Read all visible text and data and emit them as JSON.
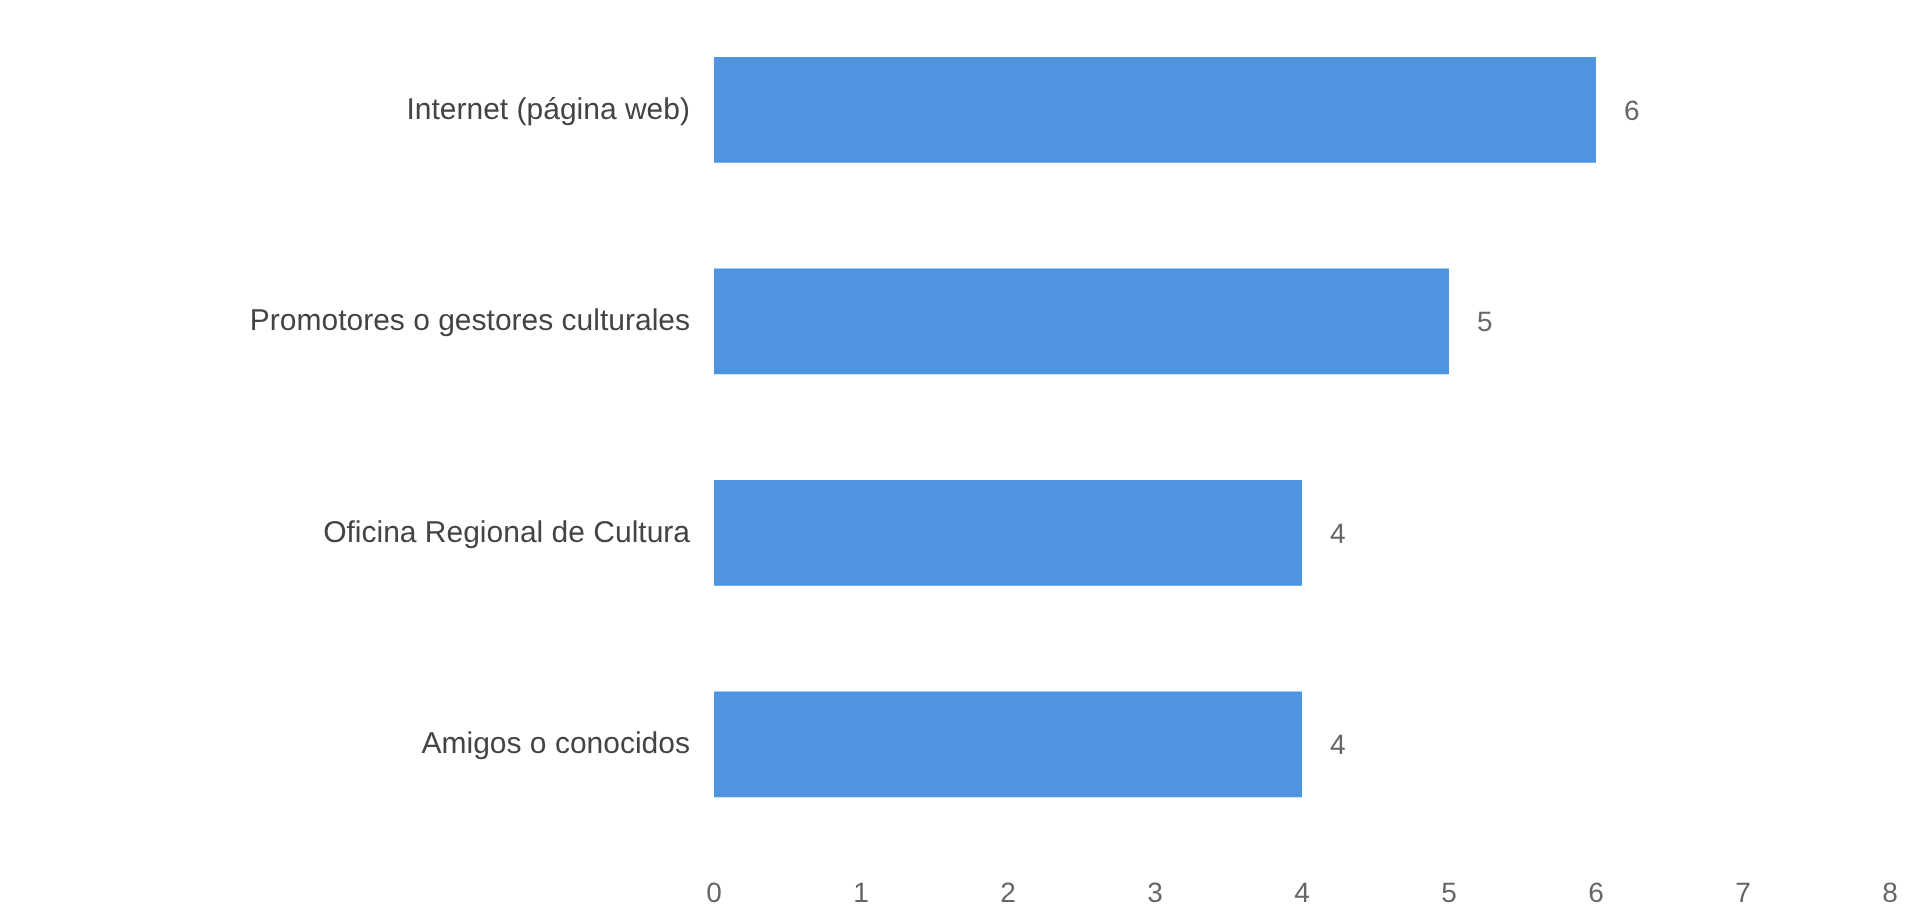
{
  "chart_data": {
    "type": "bar",
    "orientation": "horizontal",
    "categories": [
      "Internet (página web)",
      "Promotores o gestores culturales",
      "Oficina Regional de Cultura",
      "Amigos o conocidos"
    ],
    "values": [
      6,
      5,
      4,
      4
    ],
    "color": "#4f94e0",
    "data_labels": true,
    "xlim": [
      0,
      8
    ],
    "xticks": [
      0,
      1,
      2,
      3,
      4,
      5,
      6,
      7,
      8
    ],
    "grid": false
  }
}
